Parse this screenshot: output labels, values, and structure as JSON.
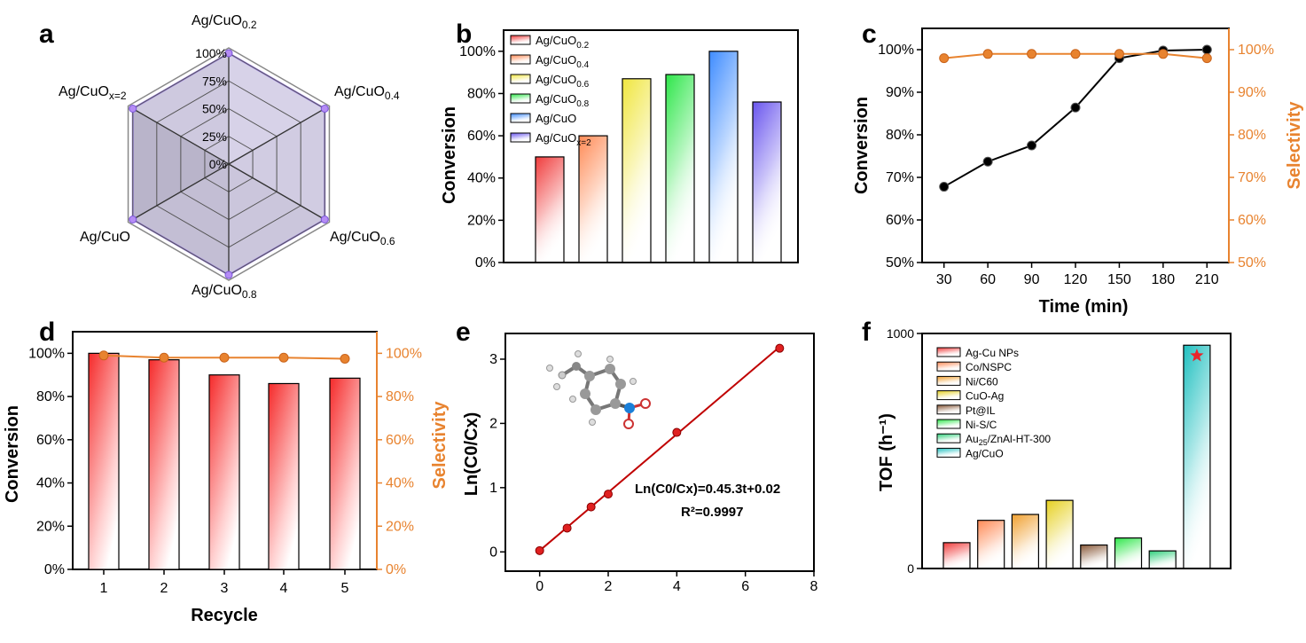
{
  "colors": {
    "orange": "#e8832f",
    "black_line": "#000000",
    "red_line": "#c00000",
    "radar_fill": "#c9c0e8",
    "radar_stroke": "#9b7fe6",
    "star": "#e8242a"
  },
  "chart_data": [
    {
      "panel": "a",
      "type": "radar",
      "axes": [
        {
          "name": "Ag/CuO",
          "sub": "0.2"
        },
        {
          "name": "Ag/CuO",
          "sub": "0.4"
        },
        {
          "name": "Ag/CuO",
          "sub": "0.6"
        },
        {
          "name": "Ag/CuO",
          "sub": "0.8"
        },
        {
          "name": "Ag/CuO",
          "sub": ""
        },
        {
          "name": "Ag/CuO",
          "sub": "x=2"
        }
      ],
      "values": [
        100,
        100,
        100,
        100,
        100,
        100
      ],
      "rings": [
        0,
        25,
        50,
        75,
        100
      ],
      "ring_labels": [
        "0%",
        "25%",
        "50%",
        "75%",
        "100%"
      ]
    },
    {
      "panel": "b",
      "type": "bar",
      "categories": [
        {
          "name": "Ag/CuO",
          "sub": "0.2"
        },
        {
          "name": "Ag/CuO",
          "sub": "0.4"
        },
        {
          "name": "Ag/CuO",
          "sub": "0.6"
        },
        {
          "name": "Ag/CuO",
          "sub": "0.8"
        },
        {
          "name": "Ag/CuO",
          "sub": ""
        },
        {
          "name": "Ag/CuO",
          "sub": "x=2"
        }
      ],
      "values": [
        50,
        60,
        87,
        89,
        100,
        76
      ],
      "bar_colors": [
        "#f03c3c",
        "#ff8a55",
        "#f0e640",
        "#2ee64a",
        "#3f8cff",
        "#6a56ee"
      ],
      "ylabel": "Conversion",
      "ylim": [
        0,
        110
      ],
      "yticks": [
        0,
        20,
        40,
        60,
        80,
        100
      ],
      "ytick_labels": [
        "0%",
        "20%",
        "40%",
        "60%",
        "80%",
        "100%"
      ]
    },
    {
      "panel": "c",
      "type": "line",
      "x": [
        30,
        60,
        90,
        120,
        150,
        180,
        210
      ],
      "series": [
        {
          "name": "Conversion",
          "values": [
            67.8,
            73.7,
            77.5,
            86.4,
            98,
            99.8,
            100
          ],
          "axis": "left",
          "color": "#000000"
        },
        {
          "name": "Selectivity",
          "values": [
            98,
            99,
            99,
            99,
            99,
            99,
            98
          ],
          "axis": "right",
          "color": "#e8832f"
        }
      ],
      "xlabel": "Time (min)",
      "ylabel": "Conversion",
      "ylabel_right": "Selectivity",
      "xlim": [
        15,
        225
      ],
      "ylim": [
        50,
        105
      ],
      "xticks": [
        30,
        60,
        90,
        120,
        150,
        180,
        210
      ],
      "xtick_labels": [
        "30",
        "60",
        "90",
        "120",
        "150",
        "180",
        "210"
      ],
      "yticks": [
        50,
        60,
        70,
        80,
        90,
        100
      ],
      "ytick_labels": [
        "50%",
        "60%",
        "70%",
        "80%",
        "90%",
        "100%"
      ]
    },
    {
      "panel": "d",
      "type": "bar",
      "categories": [
        "1",
        "2",
        "3",
        "4",
        "5"
      ],
      "values": [
        100,
        97,
        90,
        86,
        88.5
      ],
      "line_series": {
        "name": "Selectivity",
        "values": [
          99,
          98,
          98,
          98,
          97.5
        ],
        "color": "#e8832f"
      },
      "xlabel": "Recycle",
      "ylabel": "Conversion",
      "ylabel_right": "Selectivity",
      "ylim": [
        0,
        110
      ],
      "yticks": [
        0,
        20,
        40,
        60,
        80,
        100
      ],
      "ytick_labels": [
        "0%",
        "20%",
        "40%",
        "60%",
        "80%",
        "100%"
      ]
    },
    {
      "panel": "e",
      "type": "scatter",
      "x": [
        0,
        0.8,
        1.5,
        2,
        4,
        7
      ],
      "y": [
        0.02,
        0.37,
        0.7,
        0.9,
        1.86,
        3.17
      ],
      "fit": {
        "slope": 0.453,
        "intercept": 0.02
      },
      "ylabel": "Ln(C0/Cx)",
      "equation": "Ln(C0/Cx)=0.45.3t+0.02",
      "r2": "R²=0.9997",
      "xlim": [
        -1,
        8
      ],
      "ylim": [
        -0.3,
        3.4
      ],
      "xticks": [
        0,
        2,
        4,
        6,
        8
      ],
      "xtick_labels": [
        "0",
        "2",
        "4",
        "6",
        "8"
      ],
      "yticks": [
        0,
        1,
        2,
        3
      ],
      "ytick_labels": [
        "0",
        "1",
        "2",
        "3"
      ]
    },
    {
      "panel": "f",
      "type": "bar",
      "categories": [
        "Ag-Cu NPs",
        "Co/NSPC",
        "Ni/C60",
        "CuO-Ag",
        "Pt@IL",
        "Ni-S/C",
        "Au25/ZnAl-HT-300",
        "Ag/CuO"
      ],
      "values": [
        110,
        205,
        230,
        290,
        100,
        130,
        75,
        950
      ],
      "bar_colors": [
        "#f03c3c",
        "#ff8a55",
        "#f0a030",
        "#e6d020",
        "#8a5a3a",
        "#2ee64a",
        "#2ecf7a",
        "#20c0c0"
      ],
      "ylabel": "TOF (h⁻¹)",
      "ylim": [
        0,
        1000
      ],
      "yticks": [
        0,
        1000
      ],
      "ytick_labels": [
        "0",
        "1000"
      ]
    }
  ],
  "labels": {
    "panel_a": "a",
    "panel_b": "b",
    "panel_c": "c",
    "panel_d": "d",
    "panel_e": "e",
    "panel_f": "f",
    "a_radar": {
      "axes": [
        {
          "name": "Ag/CuO",
          "sub": "0.2"
        },
        {
          "name": "Ag/CuO",
          "sub": "0.4"
        },
        {
          "name": "Ag/CuO",
          "sub": "0.6"
        },
        {
          "name": "Ag/CuO",
          "sub": "0.8"
        },
        {
          "name": "Ag/CuO",
          "sub": ""
        },
        {
          "name": "Ag/CuO",
          "sub": "x=2"
        }
      ]
    },
    "f_legend": {
      "au_main": "Au",
      "au_sub": "25",
      "au_rest": "/ZnAl-HT-300"
    }
  }
}
